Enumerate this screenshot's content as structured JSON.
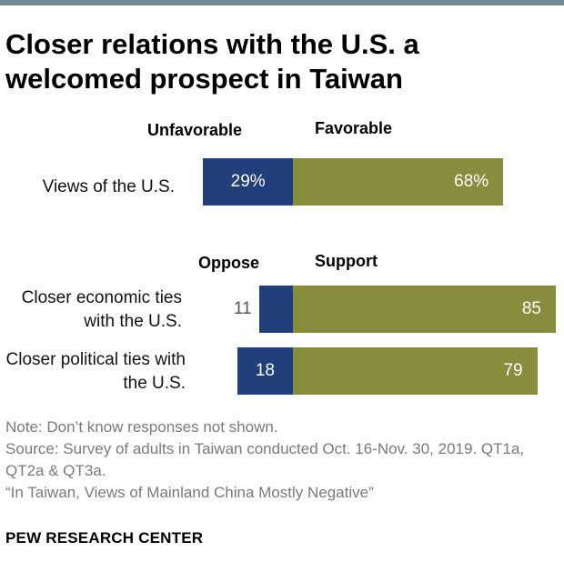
{
  "title": "Closer relations with the U.S. a welcomed prospect in Taiwan",
  "colors": {
    "negative": "#213f7a",
    "positive": "#878d3d",
    "accent_line": "#6f8b95"
  },
  "chart_data": {
    "type": "bar",
    "orientation": "horizontal-diverging",
    "title": "Closer relations with the U.S. a welcomed prospect in Taiwan",
    "sections": [
      {
        "negative_label": "Unfavorable",
        "positive_label": "Favorable",
        "rows": [
          {
            "category": "Views of the U.S.",
            "negative": 29,
            "positive": 68,
            "negative_text": "29%",
            "positive_text": "68%"
          }
        ]
      },
      {
        "negative_label": "Oppose",
        "positive_label": "Support",
        "rows": [
          {
            "category": "Closer economic ties with the U.S.",
            "negative": 11,
            "positive": 85,
            "negative_text": "11",
            "positive_text": "85"
          },
          {
            "category": "Closer political ties with the U.S.",
            "negative": 18,
            "positive": 79,
            "negative_text": "18",
            "positive_text": "79"
          }
        ]
      }
    ],
    "xlabel": "",
    "ylabel": ""
  },
  "notes": [
    "Note: Don’t know responses not shown.",
    "Source: Survey of adults in Taiwan conducted Oct. 16-Nov. 30, 2019. QT1a, QT2a & QT3a.",
    "“In Taiwan, Views of Mainland China Mostly Negative”"
  ],
  "source_org": "PEW RESEARCH CENTER"
}
